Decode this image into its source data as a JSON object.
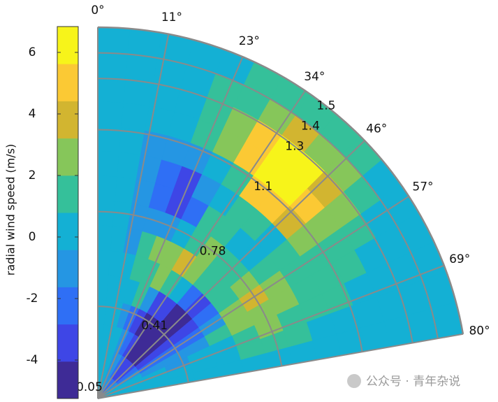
{
  "chart_data": {
    "type": "polar-contour",
    "colorbar": {
      "label": "radial wind speed (m/s)",
      "clim": [
        -5.25,
        6.84
      ],
      "ticks": [
        -4,
        -2,
        0,
        2,
        4,
        6
      ],
      "colors": [
        "#3e2b96",
        "#3e46e6",
        "#2f6ff5",
        "#2596e3",
        "#14b0d4",
        "#35c09a",
        "#86c65a",
        "#d2b530",
        "#fbc934",
        "#f7f41a"
      ]
    },
    "thetalim": [
      0,
      80
    ],
    "thetaticks": [
      0,
      11,
      23,
      34,
      46,
      57,
      69,
      80
    ],
    "rlim": [
      0.05,
      1.5
    ],
    "rticks": [
      0.05,
      0.41,
      0.78,
      1.1,
      1.3,
      1.4,
      1.5
    ],
    "z": [
      [
        0.3,
        0.3,
        0.3,
        0.2,
        -0.5,
        -1,
        -1.5,
        -2,
        -2.5,
        -2,
        -1.5,
        -0.8,
        0.2,
        0.3,
        0.3,
        0.3
      ],
      [
        0.3,
        0.3,
        0.2,
        0,
        -0.8,
        -1.5,
        -2.5,
        -3.5,
        -3.8,
        -3.2,
        -2.2,
        -1.2,
        -0.3,
        0.3,
        0.3,
        0.3
      ],
      [
        0.3,
        0.3,
        0.2,
        -0.2,
        -1,
        -2,
        -3.2,
        -4.3,
        -4.6,
        -4.2,
        -3,
        -1.8,
        -0.6,
        0.2,
        0.3,
        0.3
      ],
      [
        0.3,
        0.3,
        0,
        -0.8,
        -1.8,
        -3,
        -4.5,
        -5.2,
        -5.3,
        -5,
        -4,
        -2.8,
        -1.5,
        -0.5,
        0.3,
        0.3
      ],
      [
        0.3,
        0.3,
        0.3,
        -0.3,
        1.2,
        -1.5,
        -3,
        -3.8,
        -4.2,
        -4.5,
        -3.8,
        -2.5,
        -1.2,
        0,
        0.3,
        0.3
      ],
      [
        0.3,
        0.3,
        0,
        0.8,
        2,
        2.2,
        1.5,
        0.5,
        -2,
        -3,
        -2.5,
        -0.8,
        1,
        0.5,
        0.3,
        0.3
      ],
      [
        0.3,
        0.3,
        -0.6,
        1,
        2.2,
        3,
        3.5,
        2.5,
        1,
        0.8,
        2,
        2.5,
        2.5,
        1.8,
        0.8,
        0.3
      ],
      [
        0.3,
        0,
        -0.8,
        -1,
        -1,
        0.3,
        1.8,
        2.2,
        1.5,
        1.2,
        2.5,
        3.5,
        3.2,
        2.2,
        1.2,
        0.3
      ],
      [
        0.3,
        0.2,
        -1,
        -2.5,
        -3.8,
        -2,
        0.8,
        1,
        0.3,
        0.5,
        1.5,
        2.2,
        2.2,
        1.8,
        1,
        0.3
      ],
      [
        0.3,
        0.3,
        -0.8,
        -2.2,
        -3.2,
        -1.5,
        0.3,
        0.8,
        1.5,
        0.5,
        1.5,
        1.8,
        1.5,
        1.2,
        0.6,
        0.3
      ],
      [
        0.3,
        0.3,
        -0.6,
        -1,
        -0.8,
        0.3,
        2,
        4.5,
        5.5,
        4,
        2.5,
        2,
        1.5,
        0.8,
        0.3,
        0.3
      ],
      [
        0.3,
        0.3,
        0.3,
        0.3,
        1.2,
        3,
        5.5,
        6.5,
        6.5,
        5,
        3,
        1.8,
        1,
        0.3,
        0.3,
        0.3
      ],
      [
        0.3,
        0.3,
        0.3,
        0.3,
        1.5,
        2.8,
        5.2,
        6.2,
        5.8,
        3.8,
        2.2,
        1.2,
        0.5,
        0.3,
        0.3,
        0.3
      ],
      [
        0.3,
        0.3,
        0.3,
        0.3,
        1,
        2,
        3,
        3.5,
        3.2,
        2.2,
        1.5,
        0.5,
        0.3,
        0.3,
        0.3,
        0.3
      ],
      [
        0.3,
        0.3,
        0.3,
        0.3,
        0.3,
        0.8,
        1.5,
        1.8,
        1.5,
        0.8,
        0.3,
        0.3,
        0.3,
        0.3,
        0.3,
        0.3
      ]
    ]
  },
  "watermark": "公众号 · 青年杂说"
}
